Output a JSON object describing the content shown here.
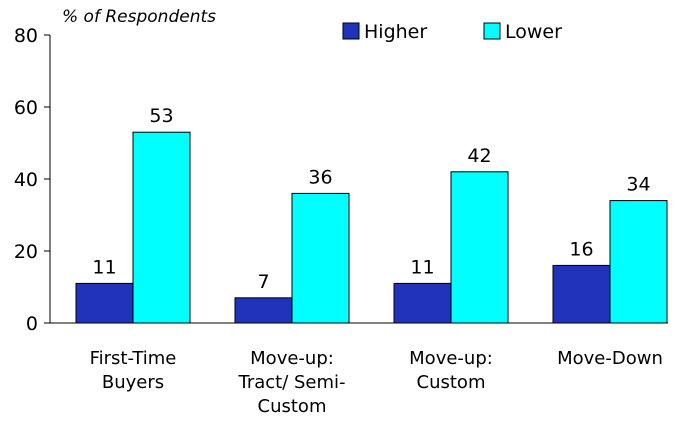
{
  "chart_data": {
    "type": "bar",
    "title": "",
    "ylabel": "% of Respondents",
    "xlabel": "",
    "ylim": [
      0,
      80
    ],
    "yticks": [
      0,
      20,
      40,
      60,
      80
    ],
    "grid": false,
    "legend_position": "top-right",
    "categories": [
      [
        "First-Time",
        "Buyers"
      ],
      [
        "Move-up:",
        "Tract/ Semi-",
        "Custom"
      ],
      [
        "Move-up:",
        "Custom"
      ],
      [
        "Move-Down"
      ]
    ],
    "series": [
      {
        "name": "Higher",
        "values": [
          11,
          7,
          11,
          16
        ],
        "color": "#2233bb"
      },
      {
        "name": "Lower",
        "values": [
          53,
          36,
          42,
          34
        ],
        "color": "#00ffff"
      }
    ]
  }
}
